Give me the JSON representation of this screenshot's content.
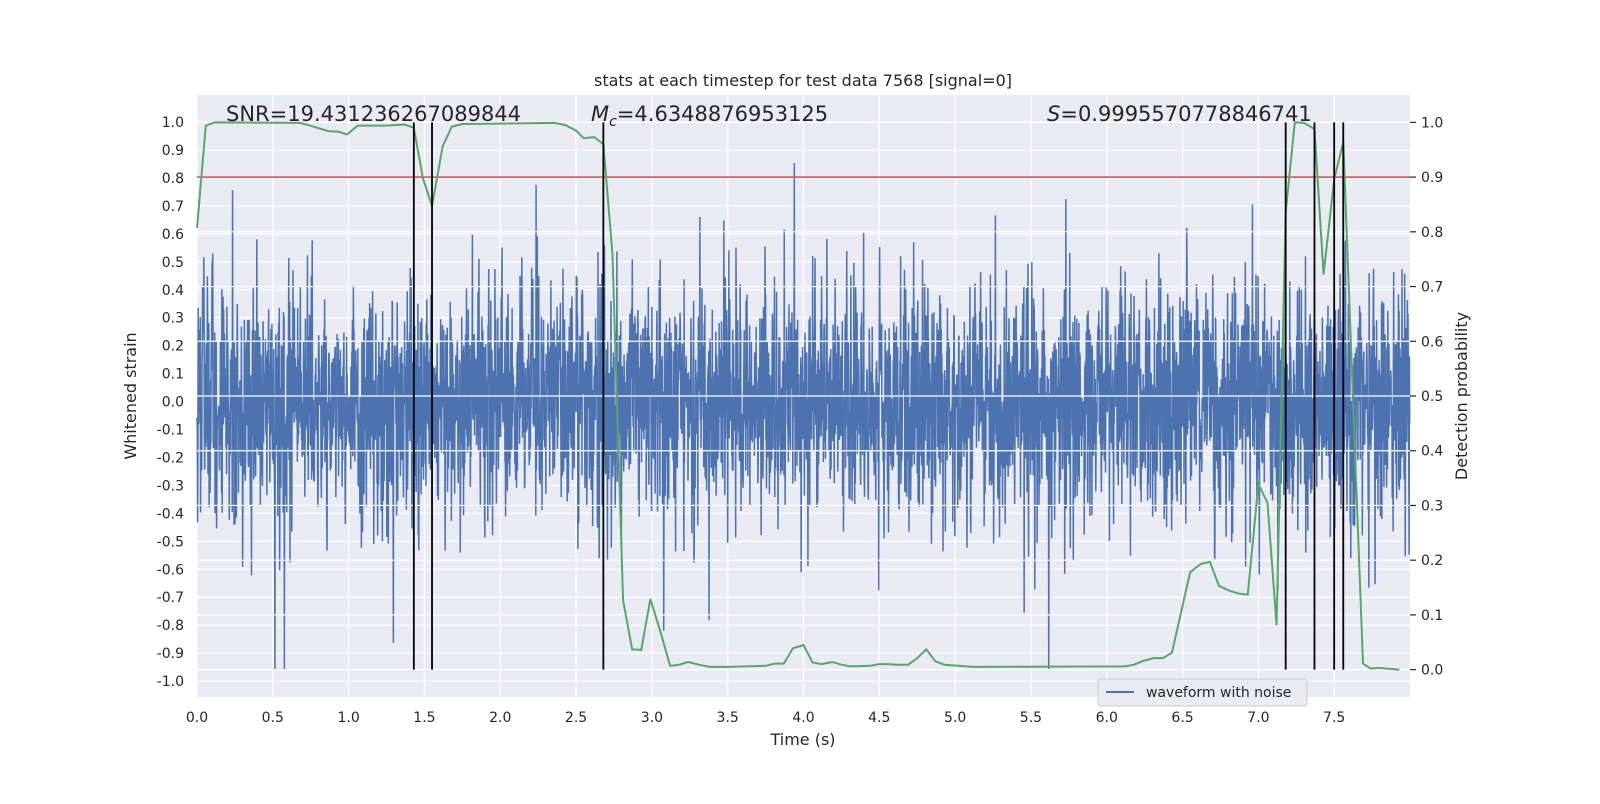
{
  "chart_data": {
    "type": "line",
    "title": "stats at each timestep for test data 7568 [signal=0]",
    "xlabel": "Time (s)",
    "ylabel": "Whitened strain",
    "ylabel_right": "Detection probability",
    "xlim": [
      0,
      8.0
    ],
    "ylim": [
      -1.057,
      1.097
    ],
    "ylim_right": [
      -0.05,
      1.05
    ],
    "grid": true,
    "x_ticks": [
      "0.0",
      "0.5",
      "1.0",
      "1.5",
      "2.0",
      "2.5",
      "3.0",
      "3.5",
      "4.0",
      "4.5",
      "5.0",
      "5.5",
      "6.0",
      "6.5",
      "7.0",
      "7.5"
    ],
    "x_tick_values": [
      0,
      0.5,
      1,
      1.5,
      2,
      2.5,
      3,
      3.5,
      4,
      4.5,
      5,
      5.5,
      6,
      6.5,
      7,
      7.5
    ],
    "y_ticks": [
      "-1.0",
      "-0.9",
      "-0.8",
      "-0.7",
      "-0.6",
      "-0.5",
      "-0.4",
      "-0.3",
      "-0.2",
      "-0.1",
      "0.0",
      "0.1",
      "0.2",
      "0.3",
      "0.4",
      "0.5",
      "0.6",
      "0.7",
      "0.8",
      "0.9",
      "1.0"
    ],
    "y_tick_values": [
      -1,
      -0.9,
      -0.8,
      -0.7,
      -0.6,
      -0.5,
      -0.4,
      -0.3,
      -0.2,
      -0.1,
      0,
      0.1,
      0.2,
      0.3,
      0.4,
      0.5,
      0.6,
      0.7,
      0.8,
      0.9,
      1.0
    ],
    "y_right_ticks": [
      "0.0",
      "0.1",
      "0.2",
      "0.3",
      "0.4",
      "0.5",
      "0.6",
      "0.7",
      "0.8",
      "0.9",
      "1.0"
    ],
    "y_right_tick_values": [
      0,
      0.1,
      0.2,
      0.3,
      0.4,
      0.5,
      0.6,
      0.7,
      0.8,
      0.9,
      1.0
    ],
    "annotations": {
      "snr": "SNR=19.431236267089844",
      "mc_symbol": "M",
      "mc_sub": "c",
      "mc_value": "=4.6348876953125",
      "s_symbol": "S",
      "s_value": "=0.9995570778846741"
    },
    "legend": {
      "placement": "lower-right",
      "entries": [
        "waveform with noise"
      ]
    },
    "waveform": {
      "name": "waveform with noise",
      "color": "#4c72b0",
      "approx_std": 0.2,
      "range": [
        -0.96,
        0.97
      ],
      "duration_s": 8.0
    },
    "threshold": {
      "axis": "right",
      "value": 0.9,
      "color": "#c44e52"
    },
    "detection_probability": {
      "color": "#55a868",
      "t": [
        0,
        0.058,
        0.118,
        0.68,
        0.735,
        0.865,
        0.93,
        0.99,
        1.06,
        1.24,
        1.37,
        1.43,
        1.49,
        1.55,
        1.62,
        1.68,
        1.75,
        2.36,
        2.43,
        2.5,
        2.55,
        2.62,
        2.68,
        2.74,
        2.81,
        2.87,
        2.93,
        2.99,
        3.06,
        3.12,
        3.18,
        3.24,
        3.31,
        3.38,
        3.5,
        3.75,
        3.81,
        3.87,
        3.93,
        4.0,
        4.06,
        4.12,
        4.19,
        4.25,
        4.31,
        4.44,
        4.5,
        4.56,
        4.62,
        4.69,
        4.75,
        4.81,
        4.87,
        4.93,
        5.12,
        6.12,
        6.18,
        6.24,
        6.31,
        6.37,
        6.43,
        6.55,
        6.62,
        6.68,
        6.74,
        6.81,
        6.87,
        6.93,
        7.0,
        7.06,
        7.12,
        7.18,
        7.24,
        7.3,
        7.37,
        7.43,
        7.5,
        7.56,
        7.69,
        7.74,
        7.8,
        7.93
      ],
      "p": [
        0.807,
        0.994,
        1.0,
        0.999,
        0.995,
        0.984,
        0.983,
        0.978,
        0.994,
        0.994,
        0.996,
        0.99,
        0.898,
        0.847,
        0.956,
        0.992,
        0.997,
        0.999,
        0.995,
        0.985,
        0.971,
        0.973,
        0.96,
        0.76,
        0.127,
        0.037,
        0.036,
        0.129,
        0.066,
        0.007,
        0.009,
        0.014,
        0.009,
        0.005,
        0.005,
        0.007,
        0.011,
        0.011,
        0.039,
        0.045,
        0.013,
        0.01,
        0.014,
        0.009,
        0.006,
        0.007,
        0.01,
        0.01,
        0.009,
        0.009,
        0.021,
        0.037,
        0.015,
        0.009,
        0.005,
        0.006,
        0.009,
        0.016,
        0.021,
        0.021,
        0.031,
        0.178,
        0.193,
        0.197,
        0.153,
        0.144,
        0.139,
        0.137,
        0.339,
        0.305,
        0.081,
        0.835,
        1.0,
        0.999,
        0.988,
        0.722,
        0.896,
        0.964,
        0.011,
        0.002,
        0.003,
        0.0
      ]
    },
    "detection_markers": {
      "color": "#000000",
      "t": [
        1.43,
        1.55,
        2.68,
        7.18,
        7.37,
        7.5,
        7.56
      ]
    }
  }
}
